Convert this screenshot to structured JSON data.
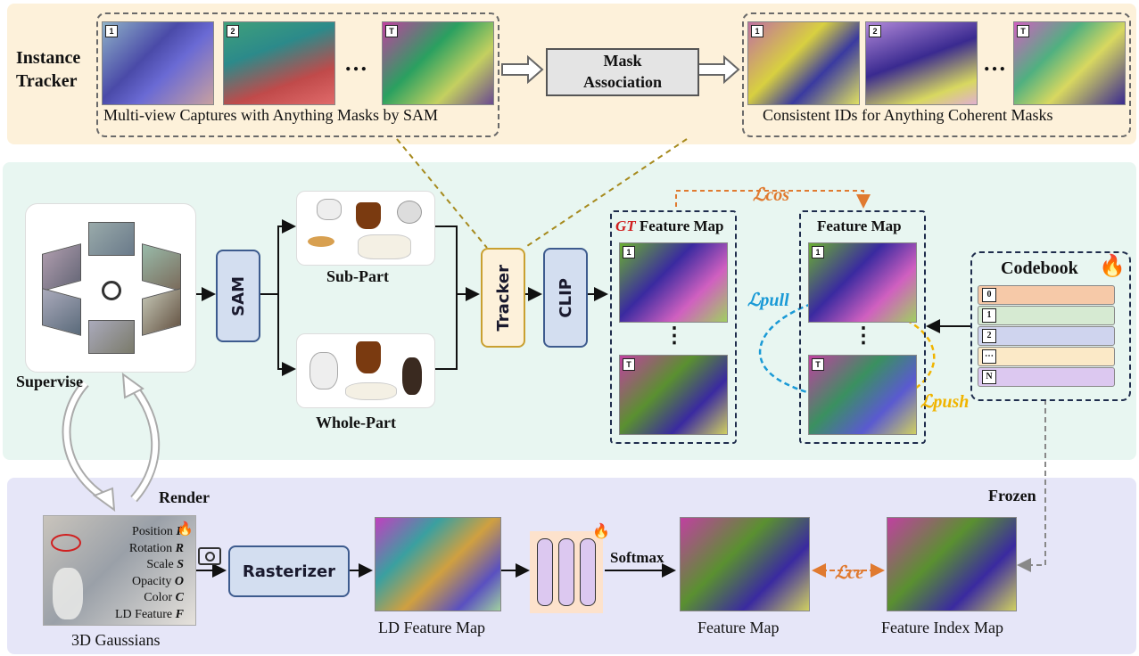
{
  "tracker_section": {
    "title_line1": "Instance",
    "title_line2": "Tracker",
    "captures_label": "Multi-view Captures with Anything Masks by SAM",
    "capture_tags": [
      "1",
      "2",
      "T"
    ],
    "ellipsis": "…",
    "mask_association_line1": "Mask",
    "mask_association_line2": "Association",
    "consistent_label": "Consistent IDs for Anything Coherent Masks",
    "consistent_tags": [
      "1",
      "2",
      "T"
    ]
  },
  "supervise_section": {
    "supervise_label": "Supervise",
    "sam_label": "SAM",
    "subpart_label": "Sub-Part",
    "wholepart_label": "Whole-Part",
    "tracker_label": "Tracker",
    "clip_label": "CLIP",
    "gt_prefix": "GT",
    "gt_feature_map_label": "Feature Map",
    "feature_map_label": "Feature Map",
    "map_tags": [
      "1",
      "T"
    ],
    "vdots": "⋮",
    "loss_cos": "ℒcos",
    "loss_pull": "ℒpull",
    "loss_push": "ℒpush",
    "codebook_title": "Codebook",
    "codebook_entries": [
      "0",
      "1",
      "2",
      "⋯",
      "N"
    ],
    "codebook_colors": [
      "#f6c9a8",
      "#d6ead2",
      "#cfd4ee",
      "#fbe9c7",
      "#dcc8f0"
    ]
  },
  "render_section": {
    "render_label": "Render",
    "frozen_label": "Frozen",
    "gaussian_attrs": [
      {
        "name": "Position",
        "sym": "P"
      },
      {
        "name": "Rotation",
        "sym": "R"
      },
      {
        "name": "Scale",
        "sym": "S"
      },
      {
        "name": "Opacity",
        "sym": "O"
      },
      {
        "name": "Color",
        "sym": "C"
      },
      {
        "name": "LD Feature",
        "sym": "F"
      }
    ],
    "gaussians_label": "3D Gaussians",
    "rasterizer_label": "Rasterizer",
    "ld_feature_map_label": "LD Feature Map",
    "softmax_label": "Softmax",
    "feature_map_label": "Feature Map",
    "loss_ce": "ℒce",
    "feature_index_map_label": "Feature Index Map"
  },
  "colors": {
    "tracker_bg": "#fdf1da",
    "supervise_bg": "#e8f6f1",
    "render_bg": "#e6e6f8",
    "orange": "#e07a30",
    "blue": "#1a9ad6",
    "yellow": "#f0b400",
    "navy": "#1f2d4d"
  }
}
